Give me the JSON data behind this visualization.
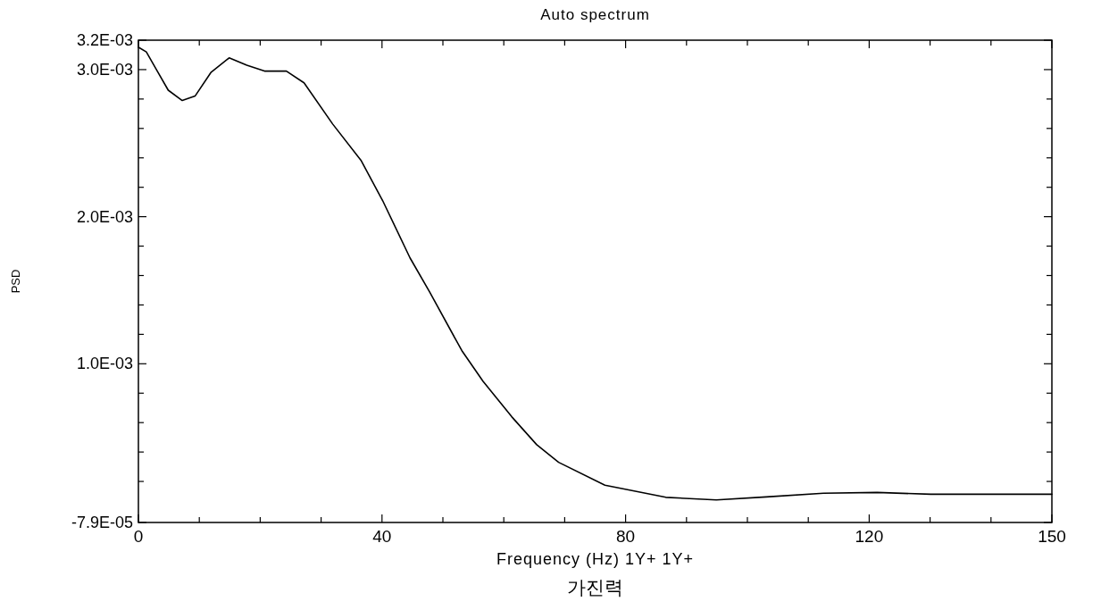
{
  "chart_data": {
    "type": "line",
    "title": "Auto spectrum",
    "xlabel": "Frequency (Hz) 1Y+ 1Y+",
    "ylabel": "PSD",
    "annotations": [
      "가진력"
    ],
    "xlim": [
      0,
      150
    ],
    "xticks": [
      0,
      {
        "value": 10,
        "label": null
      },
      {
        "value": 20,
        "label": null
      },
      {
        "value": 30,
        "label": null
      },
      40,
      {
        "value": 50,
        "label": null
      },
      {
        "value": 60,
        "label": null
      },
      {
        "value": 70,
        "label": null
      },
      80,
      {
        "value": 90,
        "label": null
      },
      {
        "value": 100,
        "label": null
      },
      {
        "value": 110,
        "label": null
      },
      120,
      {
        "value": 130,
        "label": null
      },
      {
        "value": 140,
        "label": null
      },
      150
    ],
    "ylim": [
      -7.9e-05,
      0.0032
    ],
    "yticks": [
      {
        "value": -7.9e-05,
        "label": "-7.9E-05"
      },
      {
        "value": 0.0002,
        "label": null
      },
      {
        "value": 0.0004,
        "label": null
      },
      {
        "value": 0.0006,
        "label": null
      },
      {
        "value": 0.0008,
        "label": null
      },
      {
        "value": 0.001,
        "label": "1.0E-03"
      },
      {
        "value": 0.0012,
        "label": null
      },
      {
        "value": 0.0014,
        "label": null
      },
      {
        "value": 0.0016,
        "label": null
      },
      {
        "value": 0.0018,
        "label": null
      },
      {
        "value": 0.002,
        "label": "2.0E-03"
      },
      {
        "value": 0.0022,
        "label": null
      },
      {
        "value": 0.0024,
        "label": null
      },
      {
        "value": 0.0026,
        "label": null
      },
      {
        "value": 0.0028,
        "label": null
      },
      {
        "value": 0.003,
        "label": "3.0E-03"
      },
      {
        "value": 0.0032,
        "label": "3.2E-03"
      }
    ],
    "grid": false,
    "series": [
      {
        "color": "#000000",
        "x": [
          0.1,
          1.3,
          3.1,
          4.9,
          7.2,
          9.3,
          11.9,
          14.9,
          17.8,
          20.7,
          24.3,
          27.2,
          31.9,
          36.6,
          40.1,
          44.6,
          47.8,
          53.1,
          56.6,
          61.3,
          65.4,
          69,
          76.6,
          86.6,
          94.9,
          103.1,
          112.5,
          121.3,
          130.1,
          141.9,
          150
        ],
        "values": [
          0.00315,
          0.00312,
          0.00299,
          0.00286,
          0.00279,
          0.00282,
          0.00298,
          0.00308,
          0.00303,
          0.00299,
          0.00299,
          0.00291,
          0.00263,
          0.00238,
          0.00211,
          0.00172,
          0.00149,
          0.00109,
          0.00088,
          0.00064,
          0.00045,
          0.00033,
          0.000175,
          9.2e-05,
          7.4e-05,
          9.5e-05,
          0.00012,
          0.000125,
          0.000113,
          0.000113,
          0.000113
        ]
      }
    ]
  }
}
